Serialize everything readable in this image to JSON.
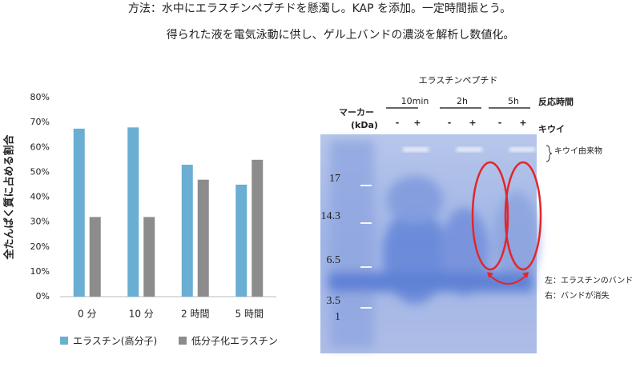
{
  "header": {
    "line1": "方法：水中にエラスチンペプチドを懸濁し。KAP を添加。一定時間振とう。",
    "line2": "得られた液を電気泳動に供し、ゲル上バンドの濃淡を解析し数値化。"
  },
  "chart_data": {
    "type": "bar",
    "ylabel": "全たんぱく質に占める割合",
    "categories": [
      "0 分",
      "10 分",
      "2 時間",
      "5 時間"
    ],
    "series": [
      {
        "name": "エラスチン(高分子)",
        "color": "#6aaed3",
        "values": [
          67.5,
          68,
          53,
          45
        ]
      },
      {
        "name": "低分子化エラスチン",
        "color": "#8c8c8c",
        "values": [
          32,
          32,
          47,
          55
        ]
      }
    ],
    "ylim": [
      0,
      80
    ],
    "yticks": [
      {
        "value": 0,
        "label": "0%"
      },
      {
        "value": 10,
        "label": "10%"
      },
      {
        "value": 20,
        "label": "20%"
      },
      {
        "value": 30,
        "label": "30%"
      },
      {
        "value": 40,
        "label": "40%"
      },
      {
        "value": 50,
        "label": "50%"
      },
      {
        "value": 60,
        "label": "60%"
      },
      {
        "value": 70,
        "label": "70%"
      },
      {
        "value": 80,
        "label": "80%"
      }
    ],
    "grid": false,
    "legend": "bottom"
  },
  "gel": {
    "title": "エラスチンペプチド",
    "marker": "マーカー",
    "unit": "(kDa)",
    "times": [
      "10min",
      "2h",
      "5h"
    ],
    "time_label": "反応時間",
    "signs": [
      "-",
      "+",
      "-",
      "+",
      "-",
      "+"
    ],
    "kiwi": "キウイ",
    "kiwi_derived": "キウイ由来物",
    "markers": [
      "17",
      "14.3",
      "6.5",
      "3.5",
      "1"
    ],
    "note_left": "左：エラスチンのバンド",
    "note_right": "右：バンドが消失"
  }
}
